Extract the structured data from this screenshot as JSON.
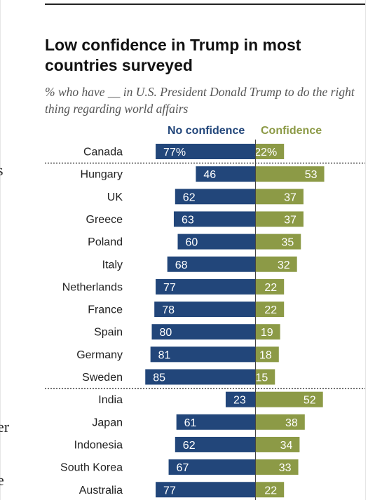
{
  "chart_data": {
    "type": "bar",
    "title": "Low confidence in Trump in most countries surveyed",
    "subtitle": "% who have __ in U.S. President Donald Trump to do the right thing regarding world affairs",
    "legend_position": "top",
    "series": [
      {
        "name": "No confidence",
        "color": "#22467a"
      },
      {
        "name": "Confidence",
        "color": "#8c9a46"
      }
    ],
    "groups": [
      {
        "rows": [
          {
            "country": "Canada",
            "no": 77,
            "yes": 22,
            "no_label": "77%",
            "yes_label": "22%"
          }
        ]
      },
      {
        "rows": [
          {
            "country": "Hungary",
            "no": 46,
            "yes": 53
          },
          {
            "country": "UK",
            "no": 62,
            "yes": 37
          },
          {
            "country": "Greece",
            "no": 63,
            "yes": 37
          },
          {
            "country": "Poland",
            "no": 60,
            "yes": 35
          },
          {
            "country": "Italy",
            "no": 68,
            "yes": 32
          },
          {
            "country": "Netherlands",
            "no": 77,
            "yes": 22
          },
          {
            "country": "France",
            "no": 78,
            "yes": 22
          },
          {
            "country": "Spain",
            "no": 80,
            "yes": 19
          },
          {
            "country": "Germany",
            "no": 81,
            "yes": 18
          },
          {
            "country": "Sweden",
            "no": 85,
            "yes": 15
          }
        ]
      },
      {
        "rows": [
          {
            "country": "India",
            "no": 23,
            "yes": 52
          },
          {
            "country": "Japan",
            "no": 61,
            "yes": 38
          },
          {
            "country": "Indonesia",
            "no": 62,
            "yes": 34
          },
          {
            "country": "South Korea",
            "no": 67,
            "yes": 33
          },
          {
            "country": "Australia",
            "no": 77,
            "yes": 22
          }
        ]
      }
    ]
  },
  "page_fragments": [
    "s",
    "er",
    "e"
  ]
}
